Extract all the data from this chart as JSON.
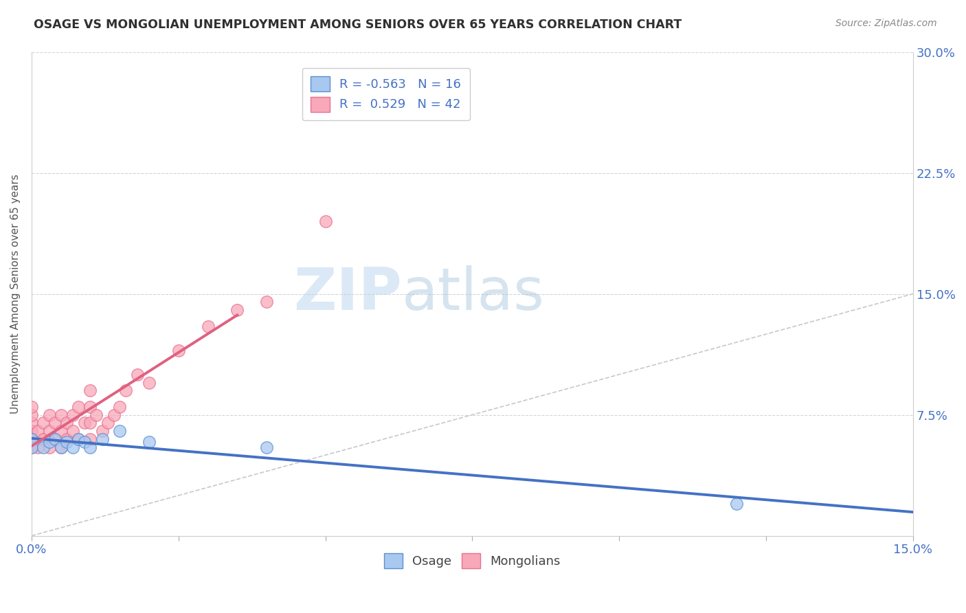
{
  "title": "OSAGE VS MONGOLIAN UNEMPLOYMENT AMONG SENIORS OVER 65 YEARS CORRELATION CHART",
  "source": "Source: ZipAtlas.com",
  "ylabel": "Unemployment Among Seniors over 65 years",
  "xlim": [
    0.0,
    0.15
  ],
  "ylim": [
    0.0,
    0.3
  ],
  "xticks": [
    0.0,
    0.025,
    0.05,
    0.075,
    0.1,
    0.125,
    0.15
  ],
  "xtick_labels": [
    "0.0%",
    "",
    "",
    "",
    "",
    "",
    "15.0%"
  ],
  "yticks": [
    0.0,
    0.075,
    0.15,
    0.225,
    0.3
  ],
  "ytick_right_labels": [
    "",
    "7.5%",
    "15.0%",
    "22.5%",
    "30.0%"
  ],
  "osage_color": "#a8c8f0",
  "mongolian_color": "#f8a8b8",
  "osage_edge_color": "#5a8fd0",
  "mongolian_edge_color": "#e87090",
  "osage_line_color": "#4472c4",
  "mongolian_line_color": "#e06080",
  "diagonal_color": "#c8c8c8",
  "legend_text_color": "#4472c4",
  "title_color": "#303030",
  "source_color": "#888888",
  "ylabel_color": "#555555",
  "osage_R": -0.563,
  "osage_N": 16,
  "mongolian_R": 0.529,
  "mongolian_N": 42,
  "watermark_zip": "ZIP",
  "watermark_atlas": "atlas",
  "osage_x": [
    0.0,
    0.0,
    0.002,
    0.003,
    0.004,
    0.005,
    0.006,
    0.007,
    0.008,
    0.009,
    0.01,
    0.012,
    0.015,
    0.02,
    0.04,
    0.12
  ],
  "osage_y": [
    0.055,
    0.06,
    0.055,
    0.058,
    0.06,
    0.055,
    0.058,
    0.055,
    0.06,
    0.058,
    0.055,
    0.06,
    0.065,
    0.058,
    0.055,
    0.02
  ],
  "mongolian_x": [
    0.0,
    0.0,
    0.0,
    0.0,
    0.0,
    0.0,
    0.001,
    0.001,
    0.002,
    0.002,
    0.003,
    0.003,
    0.003,
    0.004,
    0.004,
    0.005,
    0.005,
    0.005,
    0.006,
    0.006,
    0.007,
    0.007,
    0.008,
    0.008,
    0.009,
    0.01,
    0.01,
    0.01,
    0.01,
    0.011,
    0.012,
    0.013,
    0.014,
    0.015,
    0.016,
    0.018,
    0.02,
    0.025,
    0.03,
    0.035,
    0.04,
    0.05
  ],
  "mongolian_y": [
    0.055,
    0.06,
    0.065,
    0.07,
    0.075,
    0.08,
    0.055,
    0.065,
    0.06,
    0.07,
    0.055,
    0.065,
    0.075,
    0.06,
    0.07,
    0.055,
    0.065,
    0.075,
    0.06,
    0.07,
    0.065,
    0.075,
    0.06,
    0.08,
    0.07,
    0.06,
    0.07,
    0.08,
    0.09,
    0.075,
    0.065,
    0.07,
    0.075,
    0.08,
    0.09,
    0.1,
    0.095,
    0.115,
    0.13,
    0.14,
    0.145,
    0.195
  ]
}
